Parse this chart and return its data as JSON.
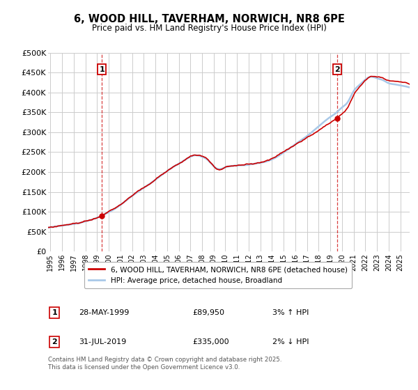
{
  "title": "6, WOOD HILL, TAVERHAM, NORWICH, NR8 6PE",
  "subtitle": "Price paid vs. HM Land Registry's House Price Index (HPI)",
  "ylim": [
    0,
    500000
  ],
  "yticks": [
    0,
    50000,
    100000,
    150000,
    200000,
    250000,
    300000,
    350000,
    400000,
    450000,
    500000
  ],
  "ytick_labels": [
    "£0",
    "£50K",
    "£100K",
    "£150K",
    "£200K",
    "£250K",
    "£300K",
    "£350K",
    "£400K",
    "£450K",
    "£500K"
  ],
  "hpi_color": "#a8c8e8",
  "price_color": "#cc0000",
  "marker1_x": 1999.41,
  "marker1_y": 89950,
  "marker2_x": 2019.58,
  "marker2_y": 335000,
  "annotation1": "28-MAY-1999",
  "annotation1_price": "£89,950",
  "annotation1_hpi": "3% ↑ HPI",
  "annotation2": "31-JUL-2019",
  "annotation2_price": "£335,000",
  "annotation2_hpi": "2% ↓ HPI",
  "legend_label1": "6, WOOD HILL, TAVERHAM, NORWICH, NR8 6PE (detached house)",
  "legend_label2": "HPI: Average price, detached house, Broadland",
  "footer": "Contains HM Land Registry data © Crown copyright and database right 2025.\nThis data is licensed under the Open Government Licence v3.0.",
  "background_color": "#ffffff",
  "grid_color": "#cccccc",
  "xmin": 1994.8,
  "xmax": 2025.8,
  "xticks": [
    1995,
    1996,
    1997,
    1998,
    1999,
    2000,
    2001,
    2002,
    2003,
    2004,
    2005,
    2006,
    2007,
    2008,
    2009,
    2010,
    2011,
    2012,
    2013,
    2014,
    2015,
    2016,
    2017,
    2018,
    2019,
    2020,
    2021,
    2022,
    2023,
    2024,
    2025
  ],
  "hpi_waypoints_x": [
    1994.8,
    1995.5,
    1996,
    1997,
    1998,
    1999,
    2000,
    2001,
    2002,
    2003,
    2004,
    2005,
    2006,
    2007,
    2007.5,
    2008,
    2008.5,
    2009,
    2009.5,
    2010,
    2011,
    2012,
    2013,
    2014,
    2015,
    2016,
    2017,
    2018,
    2019,
    2019.5,
    2020,
    2020.5,
    2021,
    2021.5,
    2022,
    2022.5,
    2023,
    2023.5,
    2024,
    2024.5,
    2025,
    2025.5,
    2025.8
  ],
  "hpi_waypoints_y": [
    60000,
    63000,
    65000,
    69000,
    75000,
    83000,
    97000,
    115000,
    138000,
    158000,
    178000,
    200000,
    220000,
    238000,
    242000,
    238000,
    230000,
    215000,
    208000,
    212000,
    216000,
    218000,
    222000,
    230000,
    248000,
    268000,
    288000,
    312000,
    335000,
    345000,
    358000,
    372000,
    400000,
    415000,
    428000,
    435000,
    432000,
    428000,
    420000,
    418000,
    415000,
    412000,
    410000
  ],
  "seed": 17
}
